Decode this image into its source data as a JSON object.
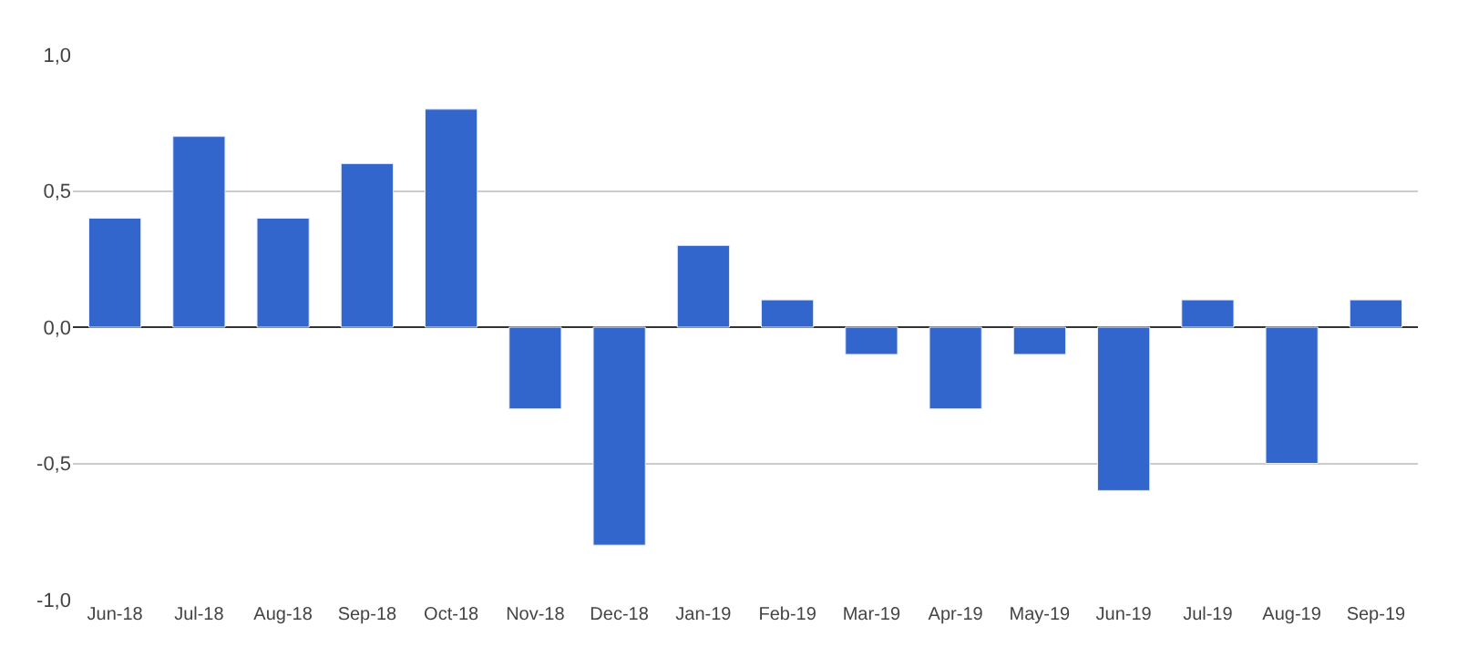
{
  "chart_data": {
    "type": "bar",
    "categories": [
      "Jun-18",
      "Jul-18",
      "Aug-18",
      "Sep-18",
      "Oct-18",
      "Nov-18",
      "Dec-18",
      "Jan-19",
      "Feb-19",
      "Mar-19",
      "Apr-19",
      "May-19",
      "Jun-19",
      "Jul-19",
      "Aug-19",
      "Sep-19"
    ],
    "values": [
      0.4,
      0.7,
      0.4,
      0.6,
      0.8,
      -0.3,
      -0.8,
      0.3,
      0.1,
      -0.1,
      -0.3,
      -0.1,
      -0.6,
      0.1,
      -0.5,
      0.1
    ],
    "color": "#3366cc",
    "ylim": [
      -1.0,
      1.0
    ],
    "yticks": [
      {
        "value": -1.0,
        "label": "-1,0"
      },
      {
        "value": -0.5,
        "label": "-0,5"
      },
      {
        "value": 0.0,
        "label": "0,0"
      },
      {
        "value": 0.5,
        "label": "0,5"
      },
      {
        "value": 1.0,
        "label": "1,0"
      }
    ],
    "grid": "y"
  }
}
